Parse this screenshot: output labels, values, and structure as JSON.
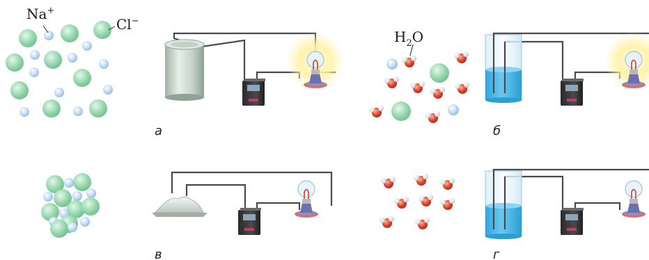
{
  "labels": {
    "sodium_ion": "Na",
    "sodium_charge": "+",
    "chloride_ion": "Cl",
    "chloride_charge": "−",
    "water_h": "H",
    "water_sub": "2",
    "water_o": "O"
  },
  "panels": {
    "a": "а",
    "b": "б",
    "v": "в",
    "g": "г"
  },
  "colors": {
    "chloride": "#8fd3a8",
    "sodium": "#b9d6f2",
    "wire": "#4a4a4a",
    "oxygen": "#e04a2e",
    "hydrogen": "#e6e6e6",
    "solution": "#49b6e6",
    "glow": "#fff3a8"
  },
  "bulb_states": {
    "a": "lit",
    "b": "lit",
    "v": "unlit",
    "g": "unlit"
  }
}
